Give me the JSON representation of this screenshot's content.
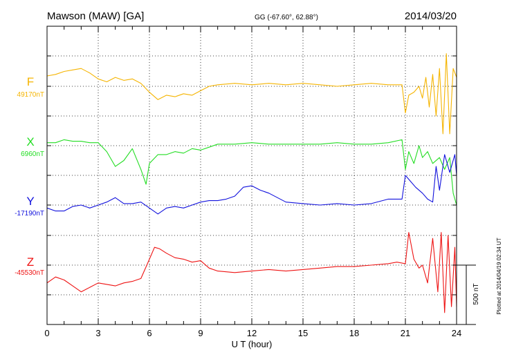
{
  "header": {
    "station": "Mawson (MAW)  [GA]",
    "coords": "GG (-67.60°,  62.88°)",
    "date": "2014/03/20"
  },
  "footer": {
    "plotted_note": "Plotted at 2014/04/19 02:34 UT"
  },
  "colors": {
    "F": "#f5b400",
    "X": "#22dd22",
    "Y": "#1010dd",
    "Z": "#ee1111",
    "axis": "#000000",
    "grid": "#000000"
  },
  "chart_data": {
    "type": "line",
    "xlabel": "U T (hour)",
    "xlim": [
      0,
      24
    ],
    "xticks": [
      0,
      3,
      6,
      9,
      12,
      15,
      18,
      21,
      24
    ],
    "xtick_labels": [
      "0",
      "3",
      "6",
      "9",
      "12",
      "15",
      "18",
      "21",
      "24"
    ],
    "units_per_grid_step": 100,
    "scale_bar": {
      "label": "500 nT",
      "value_nT": 500
    },
    "grid": true,
    "series": [
      {
        "name": "F",
        "color": "#f5b400",
        "baseline_label": "49170nT",
        "baseline_nT": 49170,
        "x": [
          0,
          0.5,
          1,
          1.5,
          2,
          2.5,
          3,
          3.5,
          4,
          4.5,
          5,
          5.5,
          6,
          6.5,
          7,
          7.5,
          8,
          8.5,
          9,
          9.5,
          10,
          11,
          12,
          13,
          14,
          15,
          16,
          17,
          18,
          19,
          20,
          20.8,
          21,
          21.2,
          21.5,
          21.8,
          22,
          22.2,
          22.4,
          22.6,
          22.8,
          23,
          23.2,
          23.4,
          23.6,
          23.8,
          24
        ],
        "values": [
          35,
          40,
          50,
          55,
          60,
          45,
          25,
          15,
          30,
          20,
          25,
          10,
          -20,
          -45,
          -30,
          -35,
          -25,
          -30,
          -15,
          0,
          5,
          10,
          5,
          10,
          5,
          10,
          5,
          0,
          5,
          10,
          5,
          5,
          -90,
          -30,
          -20,
          0,
          -40,
          30,
          -70,
          40,
          -100,
          60,
          -160,
          110,
          -160,
          60,
          30
        ]
      },
      {
        "name": "X",
        "color": "#22dd22",
        "baseline_label": "6960nT",
        "baseline_nT": 6960,
        "x": [
          0,
          0.5,
          1,
          1.5,
          2,
          2.5,
          3,
          3.5,
          4,
          4.5,
          5,
          5.5,
          5.8,
          6,
          6.5,
          7,
          7.5,
          8,
          8.5,
          9,
          9.5,
          10,
          11,
          12,
          13,
          14,
          15,
          16,
          17,
          18,
          19,
          20,
          20.8,
          21,
          21.2,
          21.5,
          21.8,
          22,
          22.3,
          22.6,
          23,
          23.3,
          23.6,
          23.8,
          24
        ],
        "values": [
          10,
          10,
          20,
          15,
          15,
          10,
          10,
          -20,
          -70,
          -50,
          -10,
          -80,
          -130,
          -60,
          -30,
          -30,
          -20,
          -25,
          -10,
          -15,
          -5,
          5,
          5,
          10,
          5,
          5,
          5,
          5,
          10,
          5,
          5,
          10,
          20,
          -80,
          -20,
          -60,
          0,
          -40,
          -20,
          -60,
          -40,
          -80,
          -40,
          -160,
          -200
        ]
      },
      {
        "name": "Y",
        "color": "#1010dd",
        "baseline_label": "-17190nT",
        "baseline_nT": -17190,
        "x": [
          0,
          0.5,
          1,
          1.5,
          2,
          2.5,
          3,
          3.5,
          4,
          4.5,
          5,
          5.5,
          6,
          6.5,
          7,
          7.5,
          8,
          8.5,
          9,
          9.5,
          10,
          10.5,
          11,
          11.5,
          12,
          12.5,
          13,
          14,
          15,
          16,
          17,
          18,
          19,
          20,
          20.8,
          21,
          21.3,
          21.6,
          22,
          22.3,
          22.6,
          22.8,
          23,
          23.3,
          23.6,
          23.9,
          24
        ],
        "values": [
          -10,
          -20,
          -20,
          -5,
          0,
          -10,
          0,
          10,
          25,
          5,
          5,
          10,
          -10,
          -30,
          -10,
          -5,
          -10,
          0,
          10,
          15,
          15,
          20,
          30,
          60,
          65,
          50,
          40,
          10,
          5,
          0,
          5,
          0,
          5,
          20,
          20,
          100,
          80,
          60,
          40,
          20,
          10,
          130,
          50,
          170,
          110,
          170,
          100
        ]
      },
      {
        "name": "Z",
        "color": "#ee1111",
        "baseline_label": "-45530nT",
        "baseline_nT": -45530,
        "x": [
          0,
          0.5,
          1,
          1.5,
          2,
          2.5,
          3,
          3.5,
          4,
          4.5,
          5,
          5.5,
          6,
          6.3,
          6.6,
          7,
          7.5,
          8,
          8.5,
          9,
          9.5,
          10,
          11,
          12,
          13,
          14,
          15,
          16,
          17,
          18,
          19,
          20,
          20.5,
          21,
          21.2,
          21.5,
          21.8,
          22,
          22.3,
          22.6,
          22.9,
          23.1,
          23.3,
          23.5,
          23.7,
          23.9,
          24
        ],
        "values": [
          -60,
          -40,
          -50,
          -70,
          -90,
          -75,
          -60,
          -65,
          -70,
          -60,
          -55,
          -45,
          20,
          60,
          55,
          40,
          25,
          20,
          10,
          15,
          -10,
          -20,
          -25,
          -20,
          -15,
          -20,
          -15,
          -10,
          -5,
          -5,
          0,
          5,
          10,
          5,
          110,
          20,
          -10,
          0,
          -60,
          90,
          -90,
          110,
          -160,
          100,
          -140,
          60,
          -140
        ]
      }
    ]
  }
}
